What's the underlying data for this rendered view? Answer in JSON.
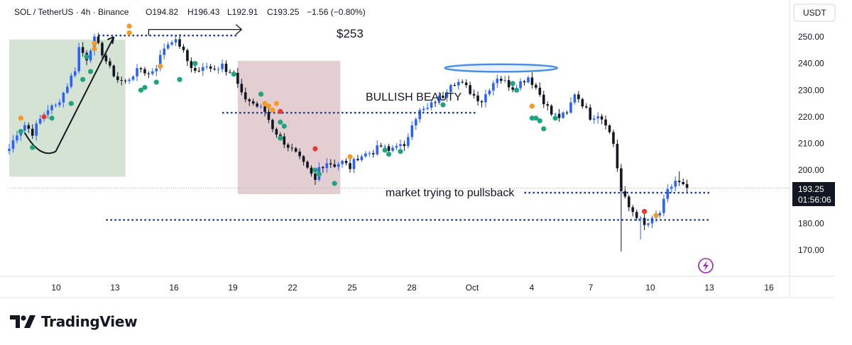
{
  "header": {
    "symbol": "SOL / TetherUS · 4h · Binance",
    "open_label": "O194.82",
    "high_label": "H196.43",
    "low_label": "L192.91",
    "close_label": "C193.25",
    "change_label": "−1.56 (−0.80%)"
  },
  "price_axis": {
    "currency": "USDT",
    "last_price": "193.25",
    "countdown": "01:56:06"
  },
  "annotations": {
    "target": "$253",
    "bullish": "BULLISH BEAUTY",
    "pullback": "market trying to pullsback"
  },
  "branding": {
    "name": "TradingView"
  },
  "colors": {
    "up": "#2962ff",
    "down": "#131722",
    "dotted_line": "#1a3a9c",
    "green_zone": "#c9dcc8",
    "red_zone": "#dcc3c5",
    "ellipse": "#4a90e2",
    "marker_orange": "#f59a23",
    "marker_red": "#e53935",
    "marker_green": "#1fa47f",
    "last_price_bg": "#131722"
  },
  "chart_data": {
    "type": "candlestick",
    "symbol": "SOL / TetherUS",
    "timeframe": "4h",
    "exchange": "Binance",
    "ylim": [
      165,
      256
    ],
    "y_ticks": [
      "250.00",
      "240.00",
      "230.00",
      "220.00",
      "210.00",
      "200.00",
      "180.00",
      "170.00"
    ],
    "x_ticks": [
      "10",
      "13",
      "16",
      "19",
      "22",
      "25",
      "28",
      "Oct",
      "4",
      "7",
      "10",
      "13",
      "16"
    ],
    "path": [
      [
        0,
        208
      ],
      [
        2,
        214
      ],
      [
        4,
        217
      ],
      [
        6,
        214
      ],
      [
        8,
        219
      ],
      [
        10,
        223
      ],
      [
        12,
        224
      ],
      [
        14,
        229
      ],
      [
        16,
        235
      ],
      [
        17,
        238
      ],
      [
        18,
        246
      ],
      [
        19,
        244
      ],
      [
        20,
        242
      ],
      [
        21,
        246
      ],
      [
        22,
        249
      ],
      [
        24,
        244
      ],
      [
        26,
        238
      ],
      [
        28,
        234
      ],
      [
        30,
        233
      ],
      [
        32,
        236
      ],
      [
        34,
        238
      ],
      [
        36,
        236
      ],
      [
        38,
        239
      ],
      [
        40,
        246
      ],
      [
        42,
        249
      ],
      [
        44,
        247
      ],
      [
        46,
        241
      ],
      [
        48,
        237
      ],
      [
        50,
        238
      ],
      [
        52,
        239
      ],
      [
        54,
        238
      ],
      [
        55,
        241
      ],
      [
        56,
        238
      ],
      [
        58,
        236
      ],
      [
        60,
        228
      ],
      [
        62,
        226
      ],
      [
        64,
        224
      ],
      [
        66,
        222
      ],
      [
        68,
        216
      ],
      [
        70,
        212
      ],
      [
        72,
        209
      ],
      [
        74,
        206
      ],
      [
        76,
        202
      ],
      [
        78,
        198
      ],
      [
        79,
        196
      ],
      [
        80,
        201
      ],
      [
        82,
        203
      ],
      [
        84,
        202
      ],
      [
        86,
        203
      ],
      [
        88,
        201
      ],
      [
        90,
        205
      ],
      [
        92,
        206
      ],
      [
        94,
        207
      ],
      [
        96,
        209
      ],
      [
        98,
        207
      ],
      [
        100,
        210
      ],
      [
        102,
        208
      ],
      [
        104,
        218
      ],
      [
        106,
        222
      ],
      [
        108,
        223
      ],
      [
        110,
        226
      ],
      [
        112,
        228
      ],
      [
        114,
        233
      ],
      [
        116,
        233
      ],
      [
        118,
        231
      ],
      [
        120,
        228
      ],
      [
        122,
        226
      ],
      [
        124,
        231
      ],
      [
        126,
        235
      ],
      [
        128,
        233
      ],
      [
        130,
        231
      ],
      [
        132,
        233
      ],
      [
        134,
        235
      ],
      [
        136,
        231
      ],
      [
        138,
        226
      ],
      [
        140,
        221
      ],
      [
        142,
        220
      ],
      [
        144,
        221
      ],
      [
        146,
        229
      ],
      [
        148,
        225
      ],
      [
        150,
        220
      ],
      [
        152,
        221
      ],
      [
        154,
        218
      ],
      [
        156,
        210
      ],
      [
        158,
        192
      ],
      [
        160,
        186
      ],
      [
        162,
        183
      ],
      [
        164,
        179
      ],
      [
        166,
        181
      ],
      [
        168,
        184
      ],
      [
        170,
        192
      ],
      [
        172,
        196
      ],
      [
        174,
        194
      ],
      [
        175,
        193.25
      ]
    ],
    "wicks": [
      [
        158,
        169.5
      ],
      [
        163,
        174
      ],
      [
        173,
        199.5
      ]
    ],
    "zones": [
      {
        "color": "green",
        "x": [
          0,
          30
        ],
        "y": [
          197.5,
          249
        ]
      },
      {
        "color": "red",
        "x": [
          59,
          85.5
        ],
        "y": [
          191,
          241
        ]
      }
    ],
    "levels": [
      {
        "value": 250.5,
        "x": [
          23,
          59
        ],
        "style": "dotted"
      },
      {
        "value": 221.5,
        "x": [
          55,
          121
        ],
        "style": "dotted"
      },
      {
        "value": 191.5,
        "x": [
          133,
          181
        ],
        "style": "dotted"
      },
      {
        "value": 181.3,
        "x": [
          25,
          181
        ],
        "style": "dotted"
      },
      {
        "value": 193.25,
        "x": [
          0,
          181
        ],
        "style": "last-price"
      }
    ],
    "markers": [
      {
        "x": 3,
        "y": 219.5,
        "color": "orange"
      },
      {
        "x": 3,
        "y": 214.5,
        "color": "green"
      },
      {
        "x": 6,
        "y": 208.5,
        "color": "green"
      },
      {
        "x": 9,
        "y": 220,
        "color": "red"
      },
      {
        "x": 11,
        "y": 219.5,
        "color": "green"
      },
      {
        "x": 16,
        "y": 225,
        "color": "green"
      },
      {
        "x": 19,
        "y": 234,
        "color": "green"
      },
      {
        "x": 21,
        "y": 237,
        "color": "green"
      },
      {
        "x": 22,
        "y": 247.5,
        "color": "orange"
      },
      {
        "x": 22,
        "y": 245.5,
        "color": "orange"
      },
      {
        "x": 20,
        "y": 242.5,
        "color": "green"
      },
      {
        "x": 31,
        "y": 254,
        "color": "orange"
      },
      {
        "x": 31,
        "y": 251.5,
        "color": "orange"
      },
      {
        "x": 34,
        "y": 230,
        "color": "green"
      },
      {
        "x": 35,
        "y": 231,
        "color": "green"
      },
      {
        "x": 38,
        "y": 233,
        "color": "green"
      },
      {
        "x": 39,
        "y": 239,
        "color": "orange"
      },
      {
        "x": 44,
        "y": 234,
        "color": "green"
      },
      {
        "x": 48,
        "y": 240,
        "color": "green"
      },
      {
        "x": 58,
        "y": 236,
        "color": "green"
      },
      {
        "x": 65,
        "y": 228.5,
        "color": "green"
      },
      {
        "x": 66,
        "y": 225,
        "color": "orange"
      },
      {
        "x": 67,
        "y": 224,
        "color": "orange"
      },
      {
        "x": 68,
        "y": 222.5,
        "color": "orange"
      },
      {
        "x": 69,
        "y": 225,
        "color": "orange"
      },
      {
        "x": 70,
        "y": 222,
        "color": "red"
      },
      {
        "x": 70,
        "y": 218,
        "color": "green"
      },
      {
        "x": 71,
        "y": 216.5,
        "color": "green"
      },
      {
        "x": 70,
        "y": 212,
        "color": "green"
      },
      {
        "x": 79,
        "y": 208,
        "color": "red"
      },
      {
        "x": 79,
        "y": 200,
        "color": "green"
      },
      {
        "x": 80,
        "y": 198.5,
        "color": "green"
      },
      {
        "x": 84,
        "y": 195,
        "color": "green"
      },
      {
        "x": 88,
        "y": 205,
        "color": "orange"
      },
      {
        "x": 97,
        "y": 207.5,
        "color": "green"
      },
      {
        "x": 98,
        "y": 206,
        "color": "green"
      },
      {
        "x": 101,
        "y": 207,
        "color": "green"
      },
      {
        "x": 112,
        "y": 224.5,
        "color": "green"
      },
      {
        "x": 130,
        "y": 232.5,
        "color": "green"
      },
      {
        "x": 131,
        "y": 230,
        "color": "green"
      },
      {
        "x": 135,
        "y": 224,
        "color": "orange"
      },
      {
        "x": 135,
        "y": 219.5,
        "color": "green"
      },
      {
        "x": 136,
        "y": 219.5,
        "color": "green"
      },
      {
        "x": 137,
        "y": 218.5,
        "color": "green"
      },
      {
        "x": 138,
        "y": 215.5,
        "color": "green"
      },
      {
        "x": 141,
        "y": 219.5,
        "color": "green"
      },
      {
        "x": 164,
        "y": 184.5,
        "color": "red"
      },
      {
        "x": 167,
        "y": 183,
        "color": "orange"
      }
    ],
    "ellipse": {
      "cx": 127,
      "cy": 238.3,
      "rx": 14.5,
      "ry": 1.4
    },
    "arrows": [
      {
        "from": [
          4,
          214
        ],
        "to": [
          27,
          250
        ]
      },
      {
        "from": [
          36,
          250.5
        ],
        "to": [
          60,
          252.5
        ]
      }
    ]
  }
}
